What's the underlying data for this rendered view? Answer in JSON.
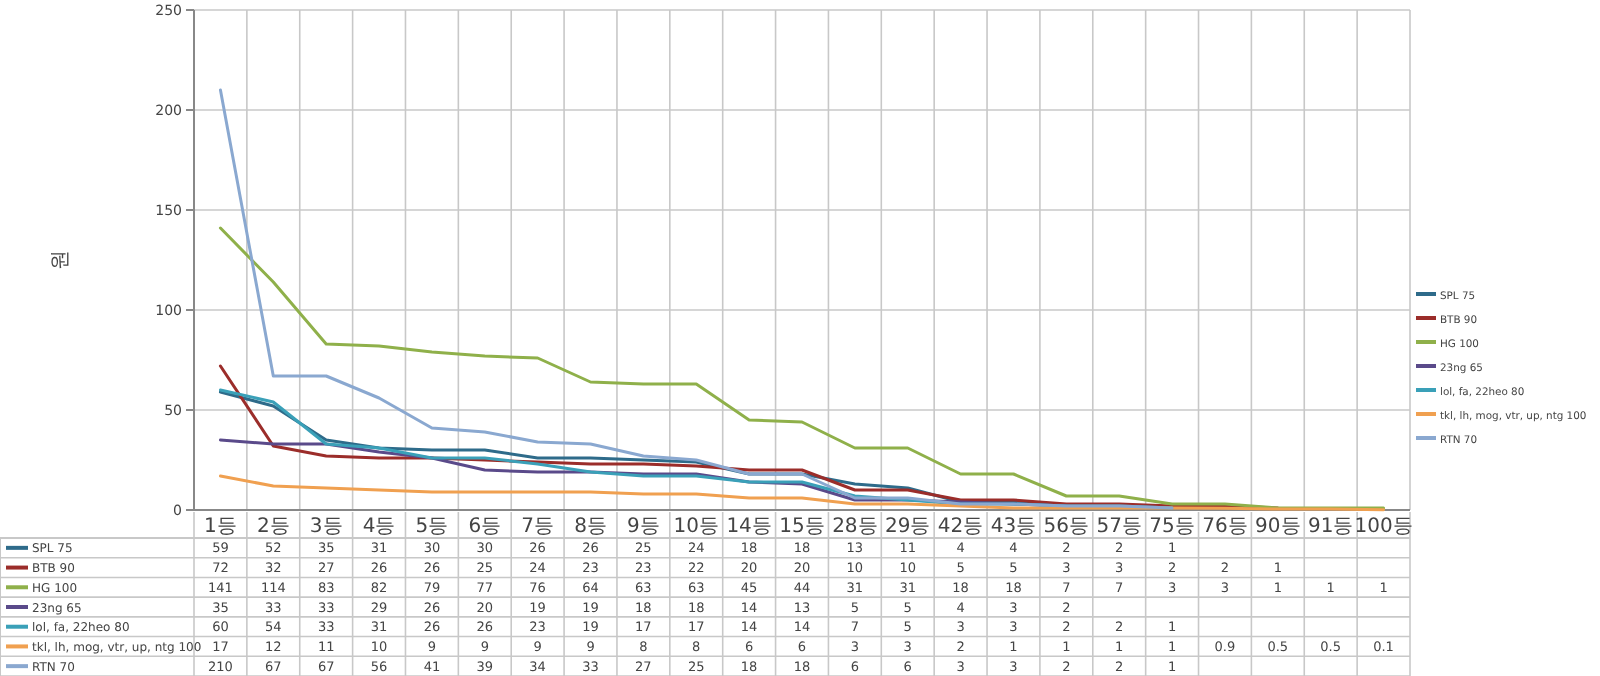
{
  "chart_data": {
    "type": "line",
    "ylabel": "원",
    "ylim": [
      0,
      250
    ],
    "yticks": [
      0,
      50,
      100,
      150,
      200,
      250
    ],
    "grid": true,
    "legend": "right",
    "data_labels": true,
    "categories": [
      "1등",
      "2등",
      "3등",
      "4등",
      "5등",
      "6등",
      "7등",
      "8등",
      "9등",
      "10등",
      "14등",
      "15등",
      "28등",
      "29등",
      "42등",
      "43등",
      "56등",
      "57등",
      "75등",
      "76등",
      "90등",
      "91등",
      "100등"
    ],
    "series": [
      {
        "name": "SPL 75",
        "color": "#2e6b8a",
        "values": [
          59,
          52,
          35,
          31,
          30,
          30,
          26,
          26,
          25,
          24,
          18,
          18,
          13,
          11,
          4,
          4,
          2,
          2,
          1,
          null,
          null,
          null,
          null
        ]
      },
      {
        "name": "BTB 90",
        "color": "#9b2d2a",
        "values": [
          72,
          32,
          27,
          26,
          26,
          25,
          24,
          23,
          23,
          22,
          20,
          20,
          10,
          10,
          5,
          5,
          3,
          3,
          2,
          2,
          1,
          null,
          null
        ]
      },
      {
        "name": "HG 100",
        "color": "#8fb04a",
        "values": [
          141,
          114,
          83,
          82,
          79,
          77,
          76,
          64,
          63,
          63,
          45,
          44,
          31,
          31,
          18,
          18,
          7,
          7,
          3,
          3,
          1,
          1,
          1
        ]
      },
      {
        "name": "23ng 65",
        "color": "#5a4a8a",
        "values": [
          35,
          33,
          33,
          29,
          26,
          20,
          19,
          19,
          18,
          18,
          14,
          13,
          5,
          5,
          4,
          3,
          2,
          null,
          null,
          null,
          null,
          null,
          null
        ]
      },
      {
        "name": "lol, fa, 22heo 80",
        "color": "#3aa0b8",
        "values": [
          60,
          54,
          33,
          31,
          26,
          26,
          23,
          19,
          17,
          17,
          14,
          14,
          7,
          5,
          3,
          3,
          2,
          2,
          1,
          null,
          null,
          null,
          null
        ]
      },
      {
        "name": "tkl, lh, mog, vtr, up, ntg 100",
        "color": "#f0a050",
        "values": [
          17,
          12,
          11,
          10,
          9,
          9,
          9,
          9,
          8,
          8,
          6,
          6,
          3,
          3,
          2,
          1,
          1,
          1,
          1,
          0.9,
          0.5,
          0.5,
          0.1
        ]
      },
      {
        "name": "RTN 70",
        "color": "#8aa8d0",
        "values": [
          210,
          67,
          67,
          56,
          41,
          39,
          34,
          33,
          27,
          25,
          18,
          18,
          6,
          6,
          3,
          3,
          2,
          2,
          1,
          null,
          null,
          null,
          null
        ]
      }
    ]
  }
}
